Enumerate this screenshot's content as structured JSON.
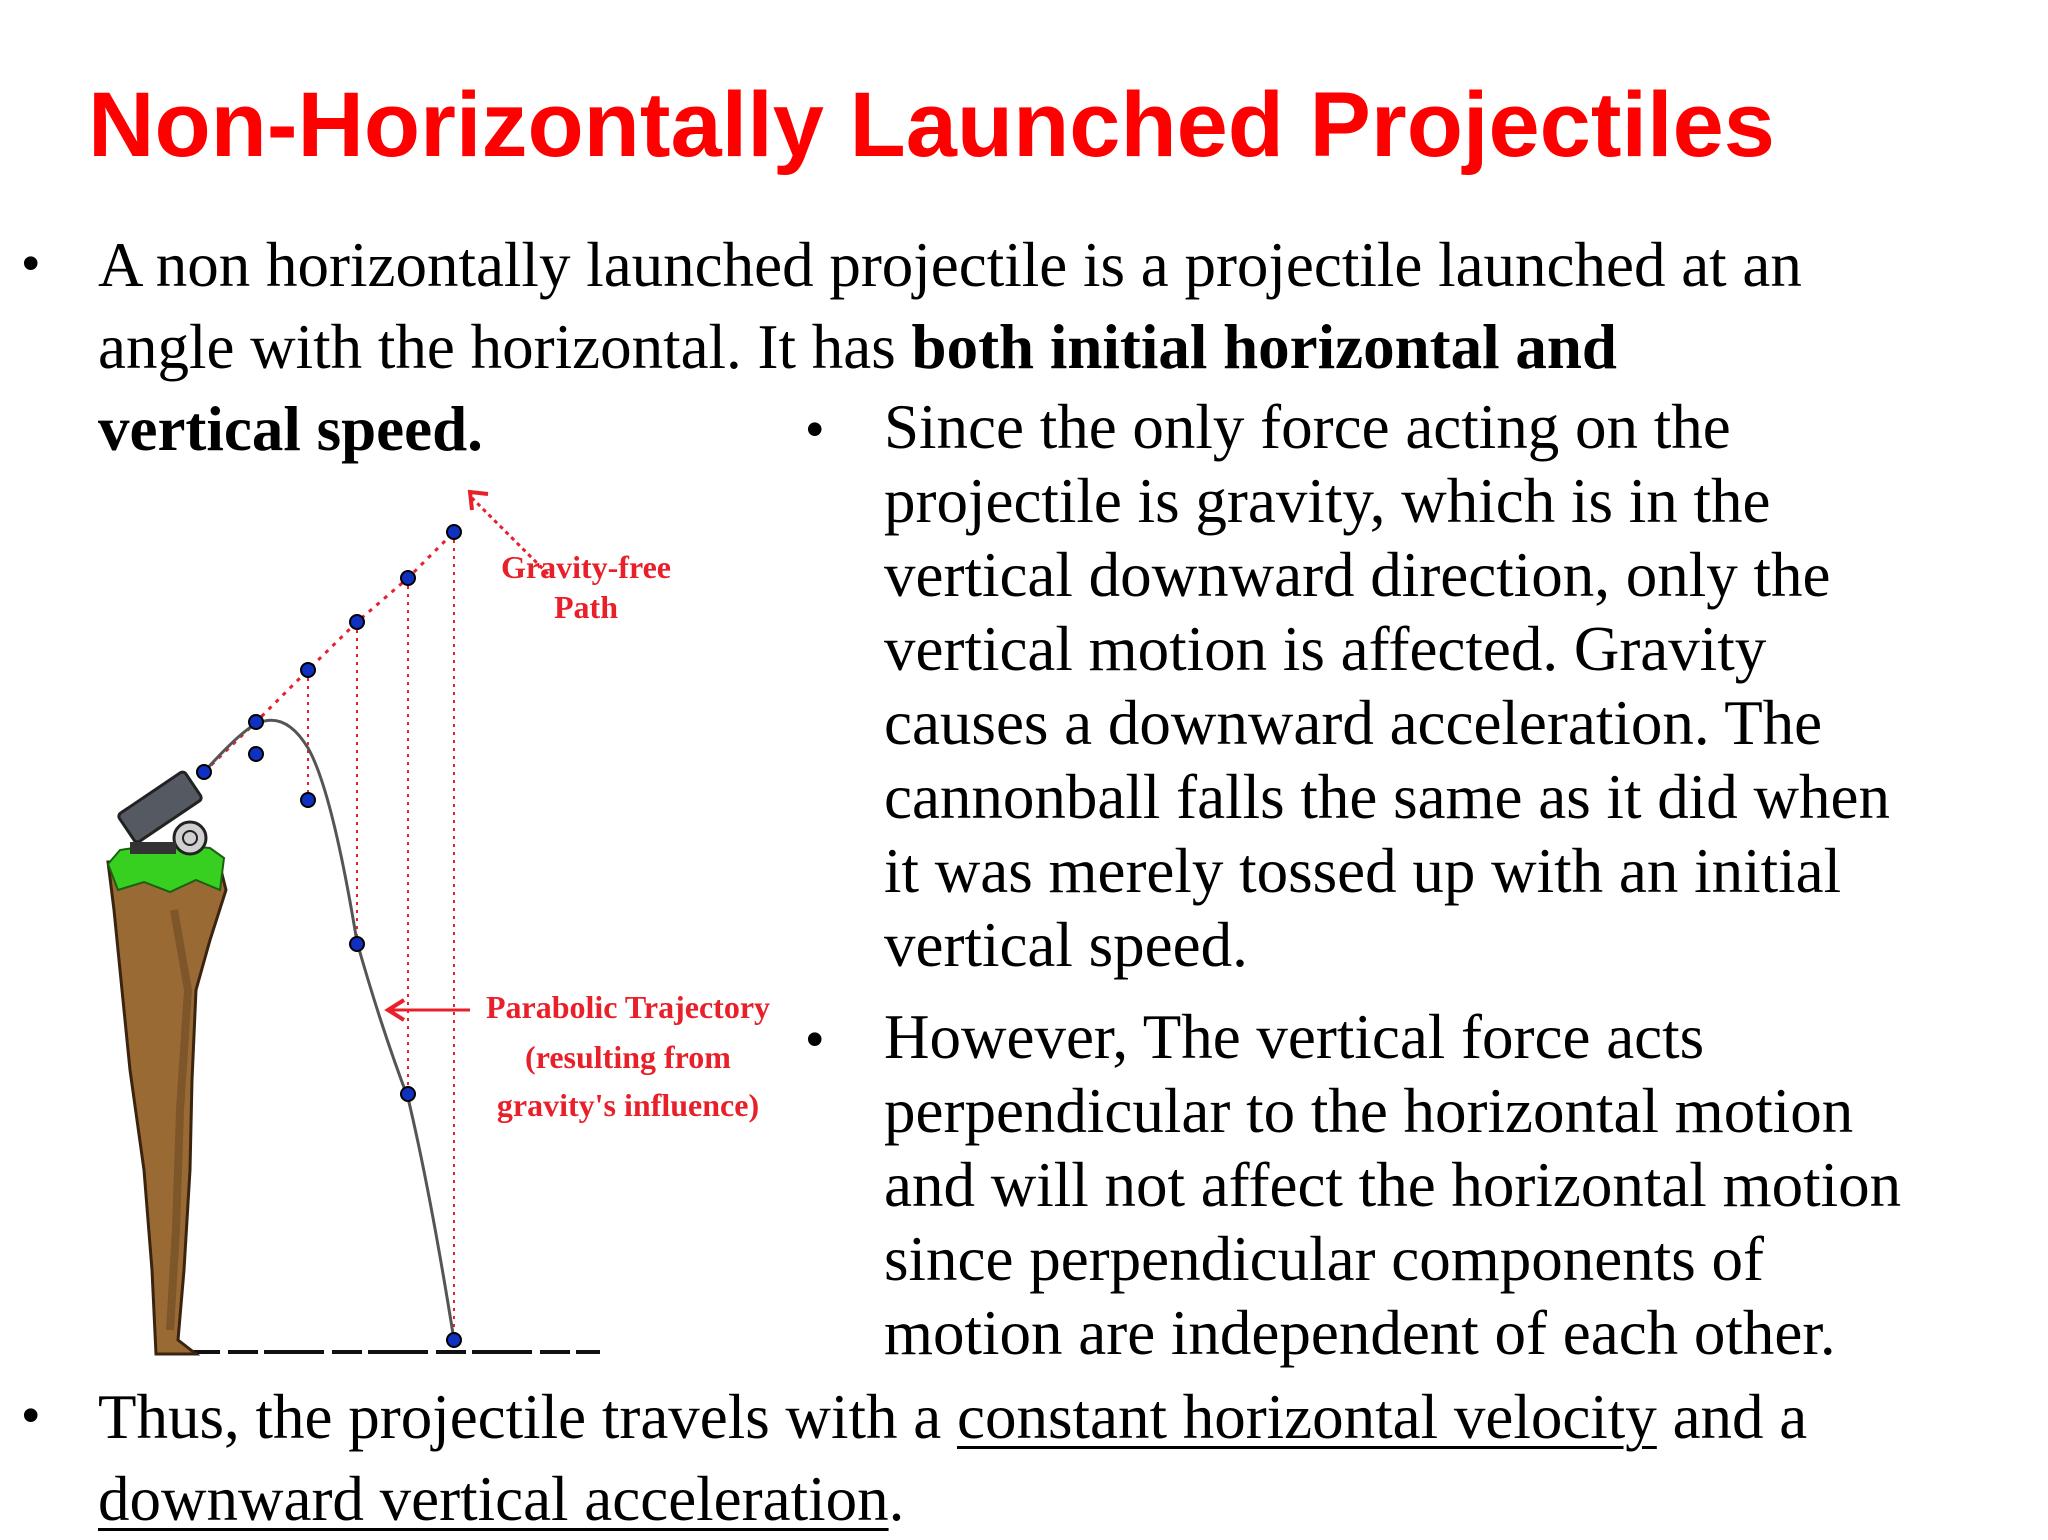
{
  "slide": {
    "title": "Non-Horizontally Launched Projectiles",
    "bullet_symbol": "•",
    "intro": {
      "line1": "A non horizontally launched projectile is a projectile launched at an",
      "line2_plain": "angle with the horizontal. It has ",
      "line2_bold": "both initial horizontal and",
      "line3_bold": "vertical speed."
    },
    "gravity_point": {
      "lines": [
        "Since the only force acting on the",
        "projectile is gravity,  which is in the",
        "vertical downward direction, only the",
        "vertical motion is affected. Gravity",
        "causes a downward acceleration. The",
        "cannonball falls the same as it did when",
        "it was merely tossed up with an initial",
        "vertical speed."
      ]
    },
    "independence_point": {
      "lines": [
        "However, The vertical force acts",
        "perpendicular to the horizontal motion",
        "and will not affect the horizontal motion",
        "since perpendicular components of",
        "motion are independent of each other."
      ]
    },
    "conclusion": {
      "part1": "Thus, the projectile travels with a ",
      "underline1": "constant horizontal velocity",
      "part2": " and a",
      "underline2": "downward vertical acceleration",
      "part3": "."
    }
  },
  "diagram": {
    "gravity_free_label": [
      "Gravity-free",
      "Path"
    ],
    "parabolic_label": [
      "Parabolic Trajectory",
      "(resulting from",
      "gravity's influence)"
    ],
    "colors": {
      "label_red": "#e8202a",
      "dot_blue": "#1030c0",
      "grass": "#38d020",
      "cliff": "#9a6a35",
      "cannon": "#555a62"
    }
  }
}
